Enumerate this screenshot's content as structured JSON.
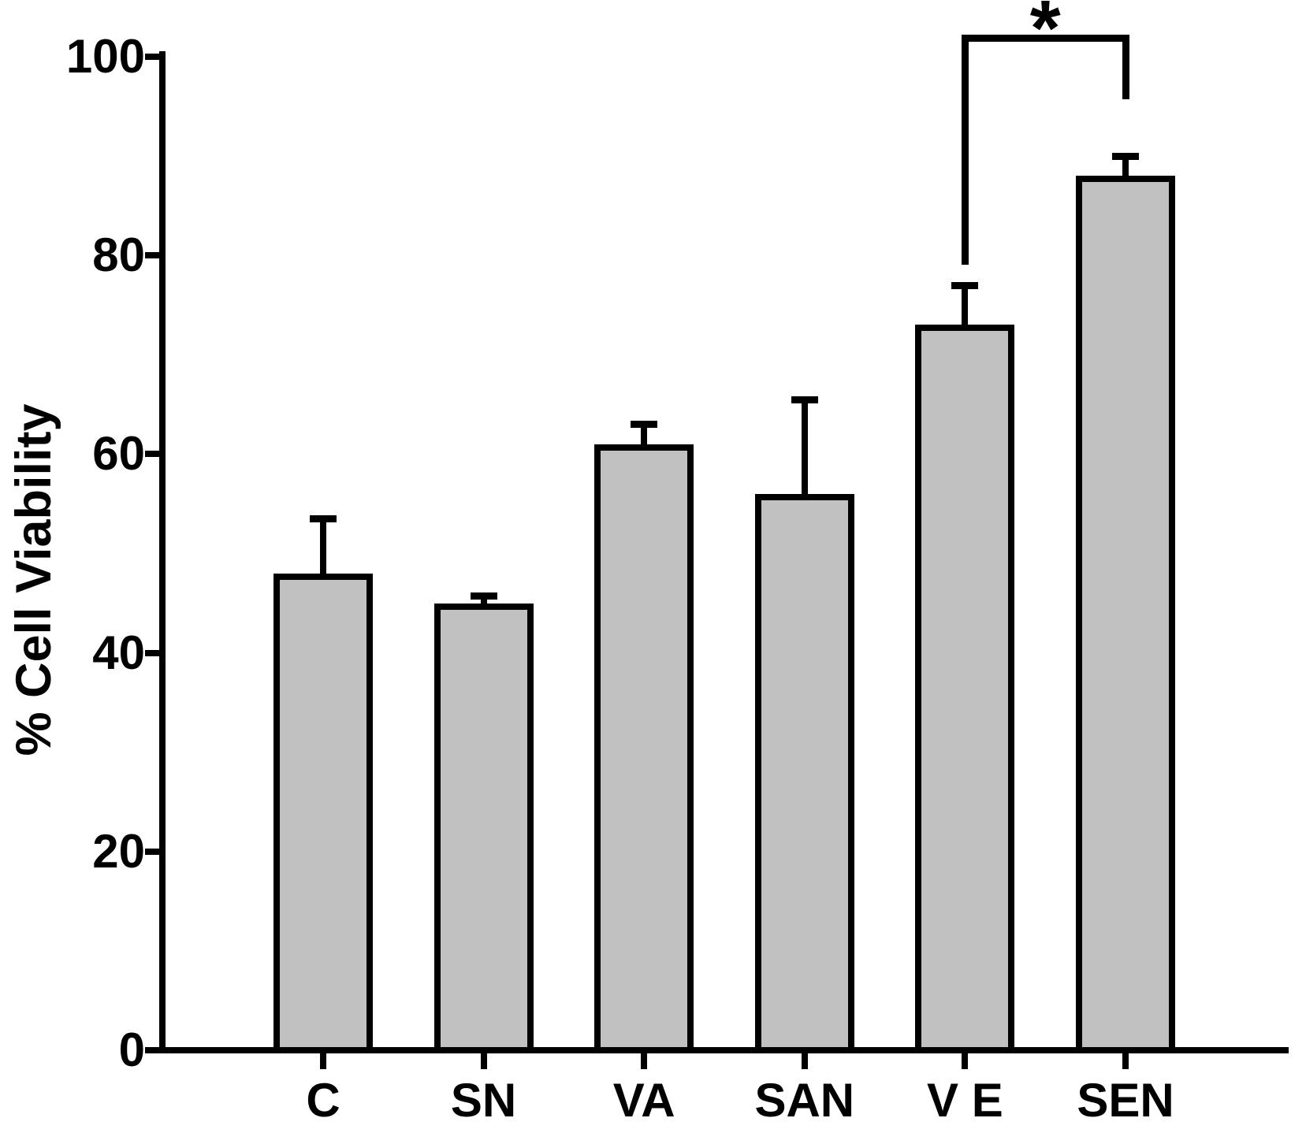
{
  "chart_data": {
    "type": "bar",
    "title": "",
    "xlabel": "",
    "ylabel": "% Cell Viability",
    "categories": [
      "C",
      "SN",
      "VA",
      "SAN",
      "V E",
      "SEN"
    ],
    "values": [
      48,
      45,
      61,
      56,
      73,
      88
    ],
    "errors_plus": [
      5.5,
      0.7,
      2,
      9.5,
      4,
      2
    ],
    "yticks": [
      0,
      20,
      40,
      60,
      80,
      100
    ],
    "ylim": [
      0,
      100
    ],
    "grid": "off",
    "legend": "none",
    "bar_color": "#c1c1c1",
    "bar_edge_color": "#000000",
    "axis_color": "#000000",
    "significance": {
      "from": "V E",
      "to": "SEN",
      "label": "*"
    }
  }
}
